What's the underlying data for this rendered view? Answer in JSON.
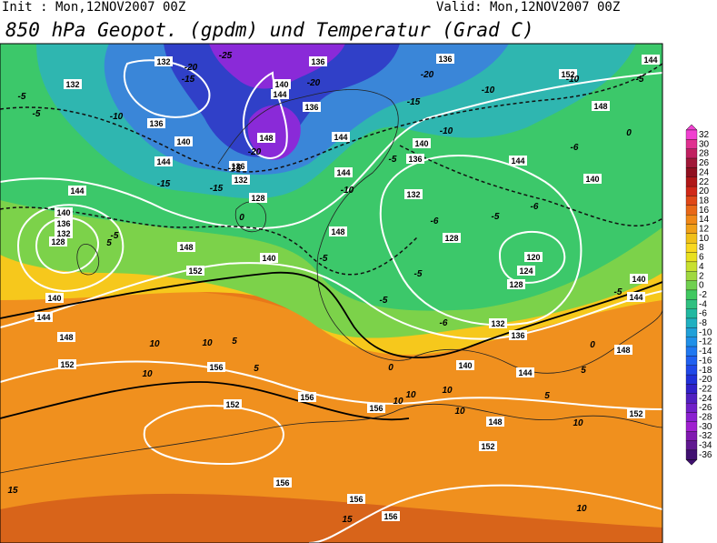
{
  "header": {
    "init": "Init : Mon,12NOV2007 00Z",
    "valid": "Valid: Mon,12NOV2007 00Z",
    "title": "850 hPa Geopot. (gpdm) und Temperatur (Grad C)"
  },
  "geopotential_labels": [
    "132",
    "136",
    "136",
    "152",
    "144",
    "132",
    "140",
    "144",
    "136",
    "148",
    "136",
    "140",
    "148",
    "140",
    "144",
    "144",
    "144",
    "136",
    "136",
    "132",
    "144",
    "140",
    "144",
    "128",
    "132",
    "140",
    "136",
    "132",
    "128",
    "148",
    "128",
    "148",
    "120",
    "140",
    "124",
    "152",
    "128",
    "140",
    "144",
    "140",
    "144",
    "132",
    "136",
    "148",
    "148",
    "152",
    "140",
    "144",
    "156",
    "156",
    "152",
    "156",
    "148",
    "152",
    "152",
    "156",
    "156",
    "156"
  ],
  "temperature_labels": [
    "-25",
    "-20",
    "-15",
    "-20",
    "-20",
    "-10",
    "-10",
    "-15",
    "-10",
    "-5",
    "-5",
    "-6",
    "0",
    "-15",
    "-20",
    "-15",
    "-10",
    "-15",
    "-5",
    "-6",
    "-5",
    "-6",
    "-5",
    "-10",
    "-5",
    "0",
    "-5",
    "-6",
    "-5",
    "0",
    "-5",
    "-5",
    "10",
    "10",
    "10",
    "10",
    "5",
    "5",
    "10",
    "5",
    "0",
    "10",
    "5",
    "10",
    "5",
    "15",
    "15",
    "10",
    "10"
  ],
  "colorbar": {
    "labels": [
      32,
      30,
      28,
      26,
      24,
      22,
      20,
      18,
      16,
      14,
      12,
      10,
      8,
      6,
      4,
      2,
      0,
      -2,
      -4,
      -6,
      -8,
      -10,
      -12,
      -14,
      -16,
      -18,
      -20,
      -22,
      -24,
      -26,
      -28,
      -30,
      -32,
      -34,
      -36
    ],
    "colors": [
      "#f040d0",
      "#e03090",
      "#c02060",
      "#a01838",
      "#901020",
      "#b01818",
      "#d02818",
      "#e04818",
      "#e86818",
      "#f08818",
      "#f0a018",
      "#f0c018",
      "#f8d820",
      "#e8e020",
      "#c8e030",
      "#a0d840",
      "#70d050",
      "#40c860",
      "#30c080",
      "#20b8a0",
      "#20b0c0",
      "#20a0d8",
      "#2090e8",
      "#2078f0",
      "#2060f0",
      "#2048e8",
      "#2030d8",
      "#3020c8",
      "#5020c0",
      "#7020c8",
      "#8a20d0",
      "#a020d0",
      "#8018b0",
      "#601890",
      "#401070"
    ]
  }
}
